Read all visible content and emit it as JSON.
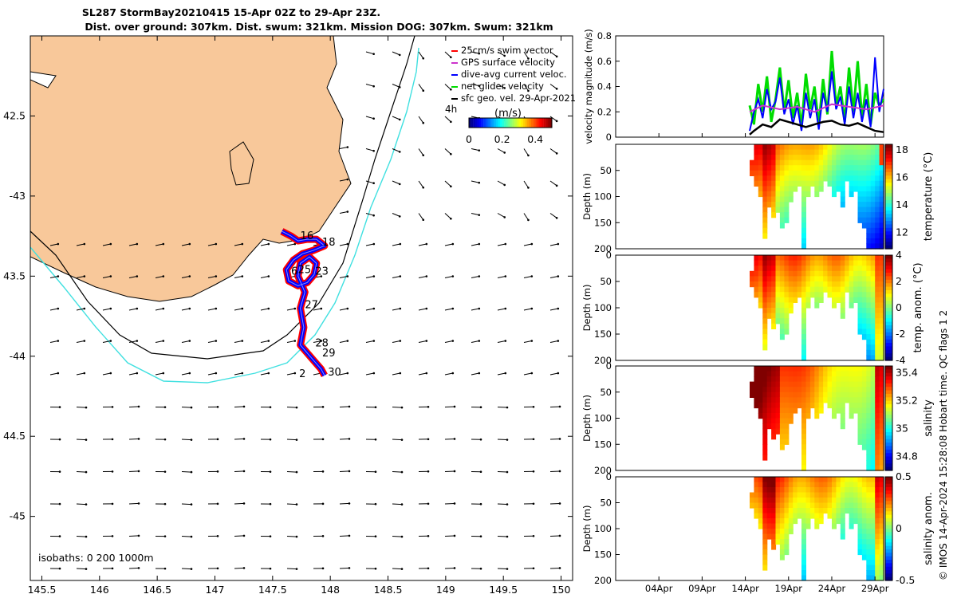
{
  "title_line1": "SL287 StormBay20210415 15-Apr 02Z to 29-Apr 23Z.",
  "title_line2": "Dist. over ground: 307km. Dist. swum: 321km. Mission DOG: 307km. Swum: 321km",
  "footer_credit": "© IMOS 14-Apr-2024 15:28:08 Hobart time. QC flags 1  2",
  "colors": {
    "land": "#f8c89a",
    "track_blue": "#0000ff",
    "track_red": "#ff0000",
    "cyan_isobath": "#40e0e0",
    "green": "#00dd00"
  },
  "chart_data": [
    {
      "type": "scatter",
      "name": "track-map",
      "xlim": [
        145.4,
        150.1
      ],
      "ylim": [
        -45.4,
        -42.0
      ],
      "xticks": [
        145.5,
        146,
        146.5,
        147,
        147.5,
        148,
        148.5,
        149,
        149.5,
        150
      ],
      "xtick_labels": [
        "145.5",
        "146",
        "146.5",
        "147",
        "147.5",
        "148",
        "148.5",
        "149",
        "149.5",
        "150"
      ],
      "yticks": [
        -42.5,
        -43,
        -43.5,
        -44,
        -44.5,
        -45
      ],
      "ytick_labels": [
        "42.5",
        "-43",
        "43.5",
        "-44",
        "44.5",
        "-45"
      ],
      "isobaths_label": "isobaths: 0   200  1000m",
      "legend": [
        "25cm/s swim vector",
        "GPS surface velocity",
        "dive-avg current veloc.",
        "net glider velocity",
        "sfc geo. vel. 29-Apr-2021"
      ],
      "colorbar_label": "(m/s)",
      "colorbar_ticks": [
        "0",
        "0.2",
        "0.4"
      ],
      "colorbar_range": [
        0,
        0.5
      ],
      "time_marker": "4h",
      "day_labels": [
        {
          "label": "16",
          "lon": 147.74,
          "lat": -43.27
        },
        {
          "label": "18",
          "lon": 147.93,
          "lat": -43.31
        },
        {
          "label": "6",
          "lon": 147.66,
          "lat": -43.49
        },
        {
          "label": "25",
          "lon": 147.72,
          "lat": -43.48
        },
        {
          "label": "23",
          "lon": 147.87,
          "lat": -43.49
        },
        {
          "label": "27",
          "lon": 147.78,
          "lat": -43.7
        },
        {
          "label": "28",
          "lon": 147.87,
          "lat": -43.94
        },
        {
          "label": "29",
          "lon": 147.93,
          "lat": -44.0
        },
        {
          "label": "2",
          "lon": 147.73,
          "lat": -44.13
        },
        {
          "label": "30",
          "lon": 147.98,
          "lat": -44.12
        }
      ],
      "track": [
        [
          147.58,
          -43.22
        ],
        [
          147.66,
          -43.25
        ],
        [
          147.72,
          -43.28
        ],
        [
          147.8,
          -43.27
        ],
        [
          147.88,
          -43.27
        ],
        [
          147.95,
          -43.31
        ],
        [
          147.85,
          -43.34
        ],
        [
          147.76,
          -43.36
        ],
        [
          147.68,
          -43.4
        ],
        [
          147.62,
          -43.46
        ],
        [
          147.64,
          -43.53
        ],
        [
          147.72,
          -43.56
        ],
        [
          147.8,
          -43.54
        ],
        [
          147.86,
          -43.49
        ],
        [
          147.88,
          -43.42
        ],
        [
          147.82,
          -43.38
        ],
        [
          147.74,
          -43.42
        ],
        [
          147.72,
          -43.5
        ],
        [
          147.78,
          -43.6
        ],
        [
          147.74,
          -43.7
        ],
        [
          147.77,
          -43.82
        ],
        [
          147.74,
          -43.93
        ],
        [
          147.8,
          -43.98
        ],
        [
          147.86,
          -44.03
        ],
        [
          147.92,
          -44.08
        ],
        [
          147.95,
          -44.12
        ]
      ]
    },
    {
      "type": "line",
      "name": "velocity-magnitude",
      "ylabel": "velocity magnitude (m/s)",
      "ylim": [
        0,
        0.8
      ],
      "yticks": [
        "0",
        "0.2",
        "0.4",
        "0.6",
        "0.8"
      ],
      "x_days_range": [
        29,
        60
      ],
      "series": [
        {
          "name": "net glider velocity",
          "color": "#00dd00",
          "x": [
            44.5,
            45,
            45.5,
            46,
            46.5,
            47,
            47.5,
            48,
            48.5,
            49,
            49.5,
            50,
            50.5,
            51,
            51.5,
            52,
            52.5,
            53,
            53.5,
            54,
            54.5,
            55,
            55.5,
            56,
            56.5,
            57,
            57.5,
            58,
            58.5,
            59,
            59.5,
            60
          ],
          "values": [
            0.25,
            0.1,
            0.42,
            0.2,
            0.48,
            0.12,
            0.3,
            0.55,
            0.2,
            0.45,
            0.15,
            0.35,
            0.08,
            0.5,
            0.22,
            0.4,
            0.1,
            0.46,
            0.18,
            0.68,
            0.25,
            0.4,
            0.12,
            0.55,
            0.2,
            0.6,
            0.15,
            0.42,
            0.1,
            0.35,
            0.25,
            0.3
          ]
        },
        {
          "name": "dive-avg current veloc.",
          "color": "#0000ff",
          "x": [
            44.5,
            45,
            45.5,
            46,
            46.5,
            47,
            47.5,
            48,
            48.5,
            49,
            49.5,
            50,
            50.5,
            51,
            51.5,
            52,
            52.5,
            53,
            53.5,
            54,
            54.5,
            55,
            55.5,
            56,
            56.5,
            57,
            57.5,
            58,
            58.5,
            59,
            59.5,
            60
          ],
          "values": [
            0.05,
            0.2,
            0.3,
            0.15,
            0.38,
            0.22,
            0.28,
            0.47,
            0.18,
            0.3,
            0.1,
            0.25,
            0.05,
            0.35,
            0.15,
            0.3,
            0.06,
            0.35,
            0.2,
            0.52,
            0.22,
            0.32,
            0.1,
            0.4,
            0.15,
            0.35,
            0.12,
            0.3,
            0.08,
            0.63,
            0.2,
            0.38
          ]
        },
        {
          "name": "GPS surface velocity",
          "color": "#cc33cc",
          "x": [
            44.5,
            46,
            48,
            50,
            52,
            54,
            56,
            58,
            60
          ],
          "values": [
            0.2,
            0.25,
            0.22,
            0.24,
            0.2,
            0.26,
            0.24,
            0.22,
            0.25
          ]
        },
        {
          "name": "sfc geo. vel.",
          "color": "#000000",
          "x": [
            44.5,
            45,
            46,
            47,
            48,
            49,
            50,
            51,
            52,
            53,
            54,
            55,
            56,
            57,
            58,
            59,
            60
          ],
          "values": [
            0.02,
            0.05,
            0.1,
            0.08,
            0.14,
            0.12,
            0.1,
            0.08,
            0.1,
            0.12,
            0.13,
            0.1,
            0.09,
            0.11,
            0.08,
            0.05,
            0.04
          ]
        }
      ]
    },
    {
      "type": "heatmap",
      "name": "temperature",
      "ylabel": "Depth (m)",
      "cbar_label": "temperature (°C)",
      "cbar_ticks": [
        "12",
        "14",
        "16",
        "18"
      ],
      "cbar_range": [
        10.8,
        18.4
      ],
      "yticks": [
        "50",
        "100",
        "150",
        "200"
      ]
    },
    {
      "type": "heatmap",
      "name": "temp-anomaly",
      "ylabel": "Depth (m)",
      "cbar_label": "temp. anom. (°C)",
      "cbar_ticks": [
        "-4",
        "-2",
        "0",
        "2",
        "4"
      ],
      "cbar_range": [
        -4,
        4
      ],
      "yticks": [
        "0",
        "50",
        "100",
        "150",
        "200"
      ]
    },
    {
      "type": "heatmap",
      "name": "salinity",
      "ylabel": "Depth (m)",
      "cbar_label": "salinity",
      "cbar_ticks": [
        "34.8",
        "35",
        "35.2",
        "35.4"
      ],
      "cbar_range": [
        34.7,
        35.45
      ],
      "yticks": [
        "0",
        "50",
        "100",
        "150",
        "200"
      ]
    },
    {
      "type": "heatmap",
      "name": "salinity-anomaly",
      "ylabel": "Depth (m)",
      "cbar_label": "salinity anom.",
      "cbar_ticks": [
        "-0.5",
        "0",
        "0.5"
      ],
      "cbar_range": [
        -0.5,
        0.5
      ],
      "yticks": [
        "0",
        "50",
        "100",
        "150",
        "200"
      ],
      "xtick_labels": [
        "04Apr",
        "09Apr",
        "14Apr",
        "19Apr",
        "24Apr",
        "29Apr"
      ],
      "xtick_days": [
        34,
        39,
        44,
        49,
        54,
        59
      ]
    }
  ]
}
